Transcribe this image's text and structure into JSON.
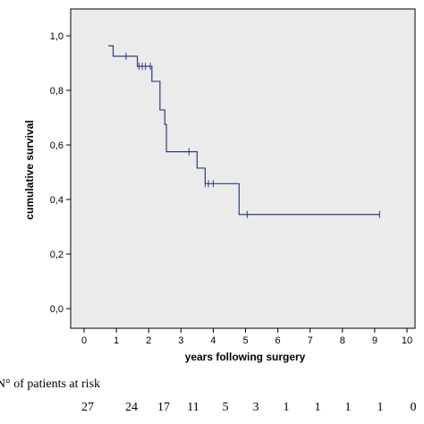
{
  "chart_data": {
    "type": "line",
    "xlabel": "years following surgery",
    "ylabel": "cumulative survival",
    "xlim": [
      0,
      10
    ],
    "ylim": [
      0,
      1
    ],
    "x_ticks": [
      "0",
      "1",
      "2",
      "3",
      "4",
      "5",
      "6",
      "7",
      "8",
      "9",
      "10"
    ],
    "y_ticks": [
      "0,0",
      "0,2",
      "0,4",
      "0,6",
      "0,8",
      "1,0"
    ],
    "y_tick_values": [
      0,
      0.2,
      0.4,
      0.6,
      0.8,
      1.0
    ],
    "grid": false,
    "plot_background": "#ebebeb",
    "series": [
      {
        "color": "#2c3f78",
        "start": [
          0.75,
          0.963
        ],
        "steps": [
          [
            0.9,
            0.925
          ],
          [
            1.65,
            0.888
          ],
          [
            2.1,
            0.833
          ],
          [
            2.35,
            0.728
          ],
          [
            2.5,
            0.675
          ],
          [
            2.55,
            0.575
          ],
          [
            3.5,
            0.515
          ],
          [
            3.75,
            0.458
          ],
          [
            4.8,
            0.345
          ]
        ],
        "end_x": 9.15,
        "censored": [
          [
            1.3,
            0.925
          ],
          [
            1.7,
            0.888
          ],
          [
            1.8,
            0.888
          ],
          [
            1.9,
            0.888
          ],
          [
            2.05,
            0.888
          ],
          [
            3.25,
            0.575
          ],
          [
            3.75,
            0.458
          ],
          [
            3.85,
            0.458
          ],
          [
            4.0,
            0.458
          ],
          [
            5.05,
            0.345
          ],
          [
            9.15,
            0.345
          ]
        ]
      }
    ]
  },
  "risk_table": {
    "label": "N° of patients at risk",
    "counts": [
      "27",
      "24",
      "17",
      "11",
      "5",
      "3",
      "1",
      "1",
      "1",
      "1",
      "0"
    ]
  }
}
